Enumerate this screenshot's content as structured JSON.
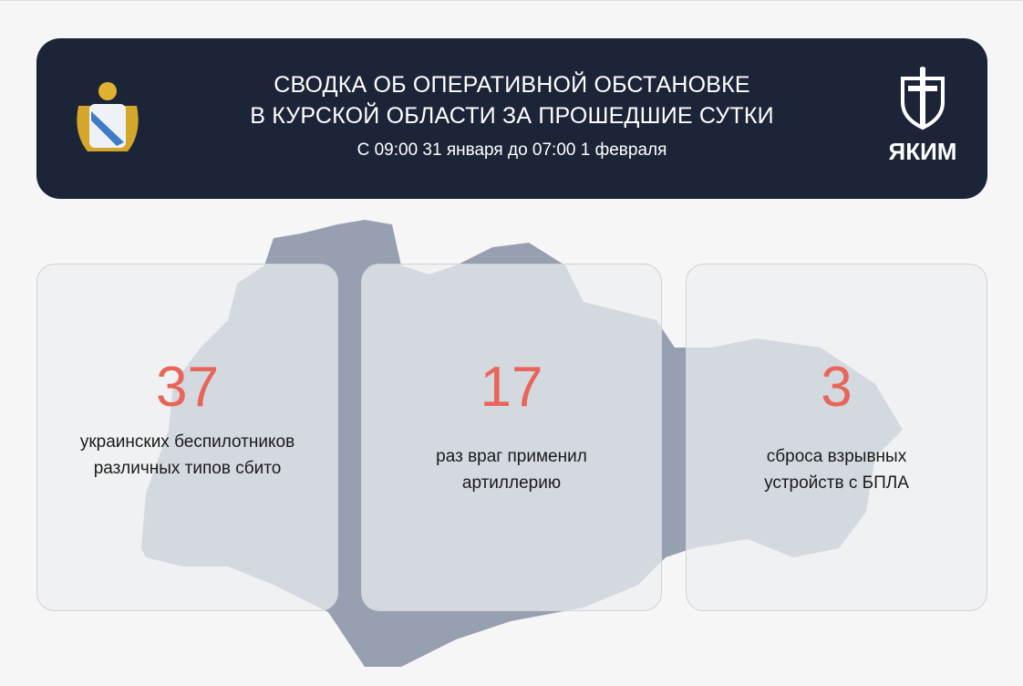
{
  "header": {
    "title_line1": "СВОДКА ОБ ОПЕРАТИВНОЙ ОБСТАНОВКЕ",
    "title_line2": "В КУРСКОЙ ОБЛАСТИ ЗА ПРОШЕДШИЕ СУТКИ",
    "subtitle": "С 09:00 31 января до 07:00 1 февраля",
    "logo_text": "ЯКИМ"
  },
  "colors": {
    "header_bg": "#1c2438",
    "accent_number": "#e8655a",
    "map": "#97a0b0"
  },
  "stats": [
    {
      "value": "37",
      "label_line1": "украинских беспилотников",
      "label_line2": "различных типов сбито"
    },
    {
      "value": "17",
      "label_line1": "раз враг применил",
      "label_line2": "артиллерию"
    },
    {
      "value": "3",
      "label_line1": "сброса взрывных",
      "label_line2": "устройств с БПЛА"
    }
  ]
}
